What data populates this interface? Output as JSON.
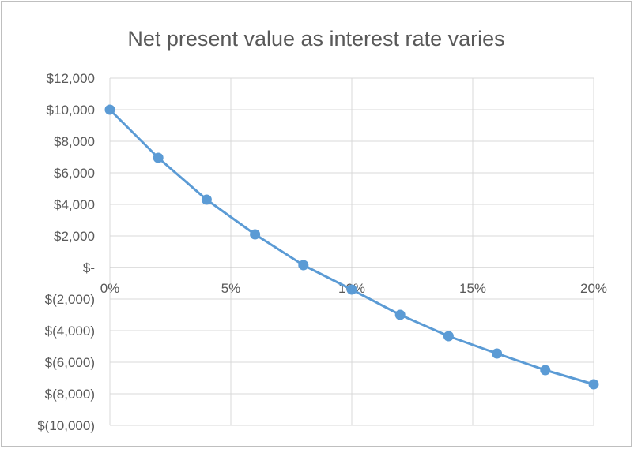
{
  "chart_data": {
    "type": "line",
    "title": "Net present value as interest rate varies",
    "x": [
      0,
      2,
      4,
      6,
      8,
      10,
      12,
      14,
      16,
      18,
      20
    ],
    "series": [
      {
        "values": [
          10000,
          6950,
          4300,
          2100,
          150,
          -1400,
          -3000,
          -4350,
          -5450,
          -6500,
          -7400
        ]
      }
    ],
    "xlim": [
      0,
      20
    ],
    "ylim": [
      -10000,
      12000
    ],
    "x_ticks": [
      0,
      5,
      10,
      15,
      20
    ],
    "x_tick_labels": [
      "0%",
      "5%",
      "10%",
      "15%",
      "20%"
    ],
    "y_ticks": [
      12000,
      10000,
      8000,
      6000,
      4000,
      2000,
      0,
      -2000,
      -4000,
      -6000,
      -8000,
      -10000
    ],
    "y_tick_labels": [
      "$12,000",
      "$10,000",
      "$8,000",
      "$6,000",
      "$4,000",
      "$2,000",
      "$-",
      "$(2,000)",
      "$(4,000)",
      "$(6,000)",
      "$(8,000)",
      "$(10,000)"
    ],
    "xlabel": "",
    "ylabel": "",
    "grid": true,
    "legend": "none",
    "colors": {
      "series": "#5b9bd5",
      "grid": "#d9d9d9",
      "text": "#595959"
    }
  }
}
